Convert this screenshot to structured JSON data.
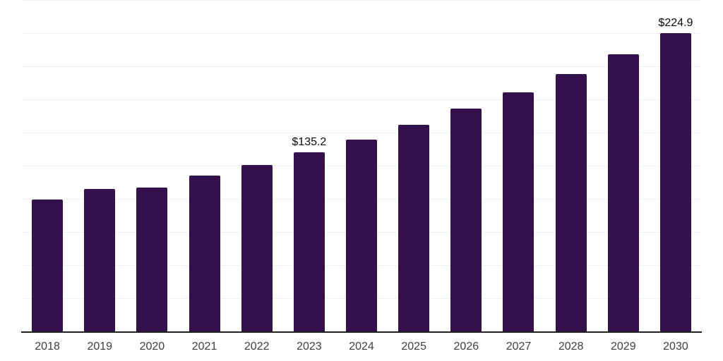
{
  "chart": {
    "background": "#ffffff",
    "bar_color": "#34114c",
    "axis_line_color": "#1f1f1f",
    "gridline_color": "#f0f0f2",
    "tick_label_color": "#404040",
    "data_label_color": "#0a0a0a"
  },
  "chart_data": {
    "type": "bar",
    "title": "",
    "xlabel": "",
    "ylabel": "",
    "categories": [
      "2018",
      "2019",
      "2020",
      "2021",
      "2022",
      "2023",
      "2024",
      "2025",
      "2026",
      "2027",
      "2028",
      "2029",
      "2030"
    ],
    "values": [
      99.7,
      107.2,
      108.5,
      117.6,
      125.6,
      135.2,
      144.6,
      155.8,
      167.9,
      180.5,
      193.9,
      209.0,
      224.9
    ],
    "data_labels": [
      "",
      "",
      "",
      "",
      "",
      "$135.2",
      "",
      "",
      "",
      "",
      "",
      "",
      "$224.9"
    ],
    "ylim": [
      0,
      250
    ],
    "gridline_step": 25,
    "grid": "horizontal-only",
    "legend": "none",
    "y_axis_tick_labels_visible": false
  }
}
